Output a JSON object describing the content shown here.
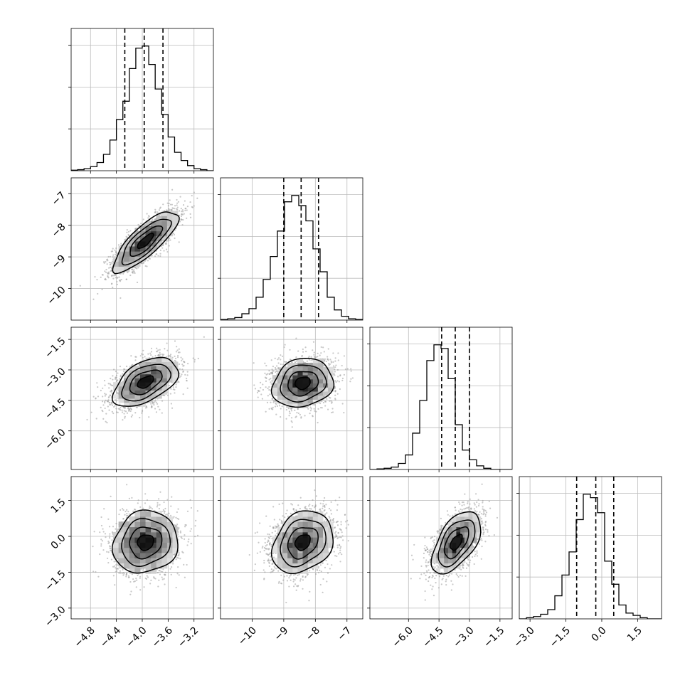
{
  "chart_data": {
    "type": "corner",
    "variables": 4,
    "axes": [
      {
        "xlim": [
          -5.1,
          -2.9
        ],
        "ticks": [
          -4.8,
          -4.4,
          -4.0,
          -3.6,
          -3.2
        ],
        "tick_labels": [
          "−4.8",
          "−4.4",
          "−4.0",
          "−3.6",
          "−3.2"
        ]
      },
      {
        "xlim": [
          -11.0,
          -6.5
        ],
        "ticks": [
          -10,
          -9,
          -8,
          -7
        ],
        "tick_labels": [
          "−10",
          "−9",
          "−8",
          "−7"
        ]
      },
      {
        "xlim": [
          -7.9,
          -0.9
        ],
        "ticks": [
          -6.0,
          -4.5,
          -3.0,
          -1.5
        ],
        "tick_labels": [
          "−6.0",
          "−4.5",
          "−3.0",
          "−1.5"
        ]
      },
      {
        "xlim": [
          -3.45,
          2.5
        ],
        "ticks": [
          -3.0,
          -1.5,
          0.0,
          1.5
        ],
        "tick_labels": [
          "−3.0",
          "−1.5",
          "0.0",
          "1.5"
        ]
      }
    ],
    "marginals": [
      {
        "variable": 0,
        "quantiles": [
          -4.27,
          -3.97,
          -3.68
        ],
        "bins": {
          "start": -5.1,
          "width": 0.1,
          "heights": [
            0.5,
            1,
            2,
            4,
            8,
            16,
            30,
            50,
            68,
            100,
            120,
            122,
            104,
            80,
            55,
            33,
            18,
            10,
            5,
            2,
            1,
            0
          ]
        }
      },
      {
        "variable": 1,
        "quantiles": [
          -9.0,
          -8.45,
          -7.9
        ],
        "bins": {
          "start": -11.0,
          "width": 0.225,
          "heights": [
            0.5,
            1,
            2,
            5,
            9,
            18,
            32,
            50,
            70,
            93,
            98,
            90,
            78,
            56,
            38,
            18,
            8,
            3,
            1,
            0.5
          ]
        }
      },
      {
        "variable": 2,
        "quantiles": [
          -4.37,
          -3.7,
          -3.0
        ],
        "bins": {
          "start": -7.9,
          "width": 0.35,
          "heights": [
            0,
            0.5,
            1,
            2,
            5,
            12,
            30,
            57,
            90,
            103,
            100,
            75,
            37,
            16,
            8,
            3,
            1,
            0,
            0,
            0
          ]
        }
      },
      {
        "variable": 3,
        "quantiles": [
          -1.05,
          -0.25,
          0.5
        ],
        "bins": {
          "start": -3.45,
          "width": 0.2975,
          "heights": [
            0,
            1,
            2,
            4,
            8,
            20,
            38,
            58,
            86,
            108,
            105,
            92,
            50,
            30,
            12,
            5,
            3,
            1,
            0,
            0
          ]
        }
      }
    ],
    "pairs": [
      {
        "row": 1,
        "col": 0,
        "mean": [
          -3.95,
          -8.5
        ],
        "sd": [
          0.25,
          0.48
        ],
        "corr": 0.8
      },
      {
        "row": 2,
        "col": 0,
        "mean": [
          -3.95,
          -3.6
        ],
        "sd": [
          0.25,
          0.6
        ],
        "corr": 0.5
      },
      {
        "row": 2,
        "col": 1,
        "mean": [
          -8.4,
          -3.65
        ],
        "sd": [
          0.48,
          0.6
        ],
        "corr": 0.15
      },
      {
        "row": 3,
        "col": 0,
        "mean": [
          -3.95,
          -0.25
        ],
        "sd": [
          0.25,
          0.65
        ],
        "corr": 0.1
      },
      {
        "row": 3,
        "col": 1,
        "mean": [
          -8.4,
          -0.25
        ],
        "sd": [
          0.48,
          0.65
        ],
        "corr": 0.25
      },
      {
        "row": 3,
        "col": 2,
        "mean": [
          -3.65,
          -0.25
        ],
        "sd": [
          0.6,
          0.65
        ],
        "corr": 0.55
      }
    ],
    "contour_levels": [
      0.12,
      0.39,
      0.68,
      0.86
    ],
    "grid": true
  }
}
